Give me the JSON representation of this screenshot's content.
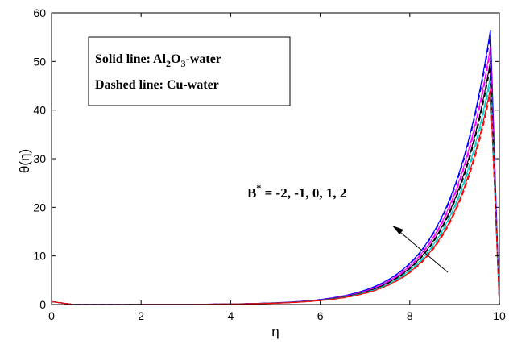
{
  "chart_data": {
    "type": "line",
    "xlabel": "η",
    "ylabel": "θ(η)",
    "xlim": [
      0,
      10
    ],
    "ylim": [
      0,
      60
    ],
    "xticks": [
      "0",
      "2",
      "4",
      "6",
      "8",
      "10"
    ],
    "yticks": [
      "0",
      "10",
      "20",
      "30",
      "40",
      "50",
      "60"
    ],
    "grid": false,
    "legend": {
      "placement": "top-left",
      "line1_prefix": "Solid line: Al",
      "line1_sub1": "2",
      "line1_mid": "O",
      "line1_sub2": "3",
      "line1_suffix": "-water",
      "line2": "Dashed line: Cu-water"
    },
    "annotation": {
      "base": "B",
      "sup": "*",
      "text": " = -2, -1, 0, 1, 2"
    },
    "peak_x": 9.8,
    "series": [
      {
        "style": "solid",
        "color": "#0000ff",
        "peak": 56.5
      },
      {
        "style": "solid",
        "color": "#ff00ff",
        "peak": 53.0
      },
      {
        "style": "solid",
        "color": "#000000",
        "peak": 50.0
      },
      {
        "style": "solid",
        "color": "#00cccc",
        "peak": 47.0
      },
      {
        "style": "solid",
        "color": "#ff0000",
        "peak": 44.5
      },
      {
        "style": "dashed",
        "color": "#0000ff",
        "peak": 55.5
      },
      {
        "style": "dashed",
        "color": "#ff00ff",
        "peak": 52.0
      },
      {
        "style": "dashed",
        "color": "#000000",
        "peak": 49.0
      },
      {
        "style": "dashed",
        "color": "#00cccc",
        "peak": 46.0
      },
      {
        "style": "dashed",
        "color": "#ff0000",
        "peak": 43.5
      }
    ]
  }
}
